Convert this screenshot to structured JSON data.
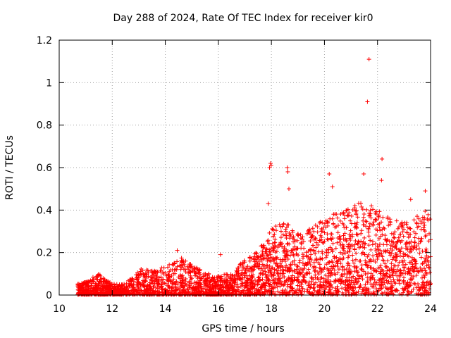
{
  "chart_data": {
    "type": "scatter",
    "title": "Day 288 of 2024, Rate Of TEC Index for receiver kir0",
    "xlabel": "GPS time / hours",
    "ylabel": "ROTI / TECUs",
    "xlim": [
      10,
      24
    ],
    "ylim": [
      0,
      1.2
    ],
    "x_ticks": [
      10,
      12,
      14,
      16,
      18,
      20,
      22,
      24
    ],
    "y_ticks": [
      0,
      0.2,
      0.4,
      0.6,
      0.8,
      1,
      1.2
    ],
    "x_tick_labels": [
      "10",
      "12",
      "14",
      "16",
      "18",
      "20",
      "22",
      "24"
    ],
    "y_tick_labels": [
      "0",
      "0.2",
      "0.4",
      "0.6",
      "0.8",
      "1",
      "1.2"
    ],
    "grid": true,
    "marker": "+",
    "marker_color": "#ff0000",
    "outliers": [
      {
        "x": 21.68,
        "y": 1.11
      },
      {
        "x": 21.62,
        "y": 0.91
      },
      {
        "x": 22.17,
        "y": 0.64
      },
      {
        "x": 17.97,
        "y": 0.62
      },
      {
        "x": 17.93,
        "y": 0.6
      },
      {
        "x": 17.99,
        "y": 0.61
      },
      {
        "x": 18.6,
        "y": 0.6
      },
      {
        "x": 18.62,
        "y": 0.58
      },
      {
        "x": 20.18,
        "y": 0.57
      },
      {
        "x": 21.48,
        "y": 0.57
      },
      {
        "x": 22.15,
        "y": 0.54
      },
      {
        "x": 20.3,
        "y": 0.51
      },
      {
        "x": 18.66,
        "y": 0.5
      },
      {
        "x": 23.8,
        "y": 0.49
      },
      {
        "x": 23.25,
        "y": 0.45
      },
      {
        "x": 17.88,
        "y": 0.43
      },
      {
        "x": 21.77,
        "y": 0.42
      },
      {
        "x": 16.08,
        "y": 0.19
      },
      {
        "x": 14.45,
        "y": 0.21
      }
    ],
    "density_envelope": [
      {
        "x": 10.7,
        "y": 0.05
      },
      {
        "x": 11.0,
        "y": 0.06
      },
      {
        "x": 11.5,
        "y": 0.1
      },
      {
        "x": 12.0,
        "y": 0.05
      },
      {
        "x": 12.5,
        "y": 0.05
      },
      {
        "x": 13.0,
        "y": 0.12
      },
      {
        "x": 13.5,
        "y": 0.11
      },
      {
        "x": 14.0,
        "y": 0.13
      },
      {
        "x": 14.5,
        "y": 0.18
      },
      {
        "x": 15.0,
        "y": 0.14
      },
      {
        "x": 15.5,
        "y": 0.1
      },
      {
        "x": 16.0,
        "y": 0.09
      },
      {
        "x": 16.5,
        "y": 0.1
      },
      {
        "x": 17.0,
        "y": 0.16
      },
      {
        "x": 17.5,
        "y": 0.2
      },
      {
        "x": 18.0,
        "y": 0.3
      },
      {
        "x": 18.5,
        "y": 0.33
      },
      {
        "x": 19.0,
        "y": 0.28
      },
      {
        "x": 19.5,
        "y": 0.3
      },
      {
        "x": 20.0,
        "y": 0.35
      },
      {
        "x": 20.5,
        "y": 0.38
      },
      {
        "x": 21.0,
        "y": 0.4
      },
      {
        "x": 21.5,
        "y": 0.42
      },
      {
        "x": 22.0,
        "y": 0.38
      },
      {
        "x": 22.5,
        "y": 0.35
      },
      {
        "x": 23.0,
        "y": 0.33
      },
      {
        "x": 23.5,
        "y": 0.37
      },
      {
        "x": 24.0,
        "y": 0.38
      }
    ],
    "x_data_range": [
      10.7,
      24.0
    ]
  }
}
